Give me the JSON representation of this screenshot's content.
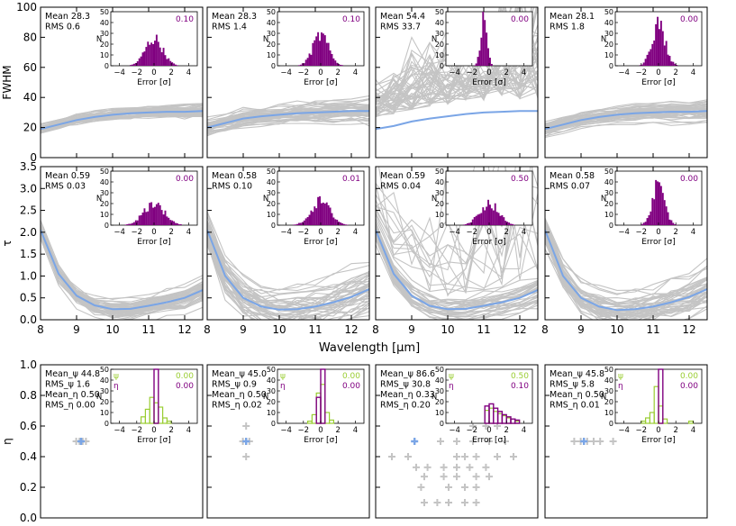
{
  "figure": {
    "xlabel": "Wavelength [μm]",
    "colors": {
      "mean": "#7aa5e6",
      "realization": "#c4c4c4",
      "hist": "#800080",
      "psi": "#9acd32",
      "eta": "#800080",
      "axes": "#000000"
    }
  },
  "chart_data": [
    {
      "type": "line",
      "row": 0,
      "col": 0,
      "ylabel": "FWHM",
      "ylim": [
        0,
        100
      ],
      "xlim": [
        8,
        12.5
      ],
      "x": [
        8,
        8.5,
        9,
        9.5,
        10,
        10.5,
        11,
        11.5,
        12,
        12.5
      ],
      "mean_values": [
        19,
        22,
        25,
        27,
        28.5,
        29.5,
        30,
        30.5,
        30.5,
        31
      ],
      "spread": 6,
      "outliers": 0,
      "stats": [
        "Mean 28.3",
        "RMS 0.6"
      ],
      "inset": {
        "type": "bar",
        "title_value": "0.10",
        "xlabel": "Error [σ]",
        "ylabel": "N",
        "xlim": [
          -5,
          5
        ],
        "ylim": [
          0,
          50
        ],
        "center": 0,
        "width": 1.0,
        "peak": 25
      }
    },
    {
      "type": "line",
      "row": 0,
      "col": 1,
      "ylabel": "",
      "ylim": [
        0,
        100
      ],
      "xlim": [
        8,
        12.5
      ],
      "x": [
        8,
        8.5,
        9,
        9.5,
        10,
        10.5,
        11,
        11.5,
        12,
        12.5
      ],
      "mean_values": [
        20,
        23,
        26,
        27.5,
        28.5,
        29.5,
        30,
        30.5,
        31,
        31
      ],
      "spread": 9,
      "outliers": 0,
      "stats": [
        "Mean 28.3",
        "RMS 1.4"
      ],
      "inset": {
        "type": "bar",
        "title_value": "0.10",
        "xlabel": "Error [σ]",
        "ylabel": "N",
        "xlim": [
          -5,
          5
        ],
        "ylim": [
          0,
          50
        ],
        "center": 0,
        "width": 0.9,
        "peak": 28
      }
    },
    {
      "type": "line",
      "row": 0,
      "col": 2,
      "ylabel": "",
      "ylim": [
        0,
        100
      ],
      "xlim": [
        8,
        12.5
      ],
      "x": [
        8,
        8.5,
        9,
        9.5,
        10,
        10.5,
        11,
        11.5,
        12,
        12.5
      ],
      "mean_values": [
        19,
        21,
        24,
        26,
        27.5,
        29,
        30,
        30.5,
        31,
        31
      ],
      "spread": 10,
      "outliers": 45,
      "stats": [
        "Mean 54.4",
        "RMS 33.7"
      ],
      "inset": {
        "type": "bar",
        "title_value": "0.00",
        "xlabel": "Error [σ]",
        "ylabel": "N",
        "xlim": [
          -5,
          5
        ],
        "ylim": [
          0,
          50
        ],
        "center": -0.6,
        "width": 0.35,
        "peak": 50
      }
    },
    {
      "type": "line",
      "row": 0,
      "col": 3,
      "ylabel": "",
      "ylim": [
        0,
        100
      ],
      "xlim": [
        8,
        12.5
      ],
      "x": [
        8,
        8.5,
        9,
        9.5,
        10,
        10.5,
        11,
        11.5,
        12,
        12.5
      ],
      "mean_values": [
        19,
        22,
        25,
        27,
        28.5,
        29.5,
        30,
        30.5,
        30.5,
        31
      ],
      "spread": 7,
      "outliers": 0,
      "stats": [
        "Mean 28.1",
        "RMS 1.8"
      ],
      "inset": {
        "type": "bar",
        "title_value": "0.00",
        "xlabel": "Error [σ]",
        "ylabel": "N",
        "xlim": [
          -5,
          5
        ],
        "ylim": [
          0,
          50
        ],
        "center": 0,
        "width": 0.75,
        "peak": 38
      }
    },
    {
      "type": "line",
      "row": 1,
      "col": 0,
      "ylabel": "τ",
      "ylim": [
        0,
        3.5
      ],
      "xlim": [
        8,
        12.5
      ],
      "x": [
        8,
        8.5,
        9,
        9.5,
        10,
        10.5,
        11,
        11.5,
        12,
        12.5
      ],
      "mean_values": [
        2.05,
        1.05,
        0.55,
        0.33,
        0.24,
        0.25,
        0.32,
        0.4,
        0.5,
        0.68
      ],
      "spread": 0.3,
      "outliers": 0,
      "stats": [
        "Mean 0.59",
        "RMS 0.03"
      ],
      "inset": {
        "type": "bar",
        "title_value": "0.00",
        "xlabel": "Error [σ]",
        "ylabel": "N",
        "xlim": [
          -5,
          5
        ],
        "ylim": [
          0,
          50
        ],
        "center": 0,
        "width": 1.2,
        "peak": 20
      }
    },
    {
      "type": "line",
      "row": 1,
      "col": 1,
      "ylabel": "",
      "ylim": [
        0,
        3.5
      ],
      "xlim": [
        8,
        12.5
      ],
      "x": [
        8,
        8.5,
        9,
        9.5,
        10,
        10.5,
        11,
        11.5,
        12,
        12.5
      ],
      "mean_values": [
        2.05,
        1.0,
        0.5,
        0.3,
        0.23,
        0.24,
        0.3,
        0.4,
        0.52,
        0.7
      ],
      "spread": 0.7,
      "outliers": 0,
      "stats": [
        "Mean 0.58",
        "RMS 0.10"
      ],
      "inset": {
        "type": "bar",
        "title_value": "0.01",
        "xlabel": "Error [σ]",
        "ylabel": "N",
        "xlim": [
          -5,
          5
        ],
        "ylim": [
          0,
          50
        ],
        "center": 0,
        "width": 1.1,
        "peak": 22
      }
    },
    {
      "type": "line",
      "row": 1,
      "col": 2,
      "ylabel": "",
      "ylim": [
        0,
        3.5
      ],
      "xlim": [
        8,
        12.5
      ],
      "x": [
        8,
        8.5,
        9,
        9.5,
        10,
        10.5,
        11,
        11.5,
        12,
        12.5
      ],
      "mean_values": [
        2.05,
        1.05,
        0.55,
        0.32,
        0.24,
        0.25,
        0.32,
        0.4,
        0.5,
        0.68
      ],
      "spread": 0.45,
      "outliers": 12,
      "stats": [
        "Mean 0.59",
        "RMS 0.04"
      ],
      "inset": {
        "type": "bar",
        "title_value": "0.50",
        "xlabel": "Error [σ]",
        "ylabel": "N",
        "xlim": [
          -5,
          5
        ],
        "ylim": [
          0,
          50
        ],
        "center": 0,
        "width": 1.1,
        "peak": 20
      }
    },
    {
      "type": "line",
      "row": 1,
      "col": 3,
      "ylabel": "",
      "ylim": [
        0,
        3.5
      ],
      "xlim": [
        8,
        12.5
      ],
      "x": [
        8,
        8.5,
        9,
        9.5,
        10,
        10.5,
        11,
        11.5,
        12,
        12.5
      ],
      "mean_values": [
        2.05,
        1.0,
        0.5,
        0.3,
        0.22,
        0.24,
        0.3,
        0.4,
        0.52,
        0.7
      ],
      "spread": 0.55,
      "outliers": 0,
      "stats": [
        "Mean 0.58",
        "RMS 0.07"
      ],
      "inset": {
        "type": "bar",
        "title_value": "0.00",
        "xlabel": "Error [σ]",
        "ylabel": "N",
        "xlim": [
          -5,
          5
        ],
        "ylim": [
          0,
          50
        ],
        "center": 0,
        "width": 0.7,
        "peak": 38
      }
    },
    {
      "type": "scatter",
      "row": 2,
      "col": 0,
      "ylabel": "η",
      "ylim": [
        0,
        1
      ],
      "xlim": [
        0,
        1
      ],
      "points": [
        [
          0.22,
          0.5
        ],
        [
          0.24,
          0.5
        ],
        [
          0.26,
          0.5
        ],
        [
          0.28,
          0.5
        ]
      ],
      "mean_point": [
        0.25,
        0.5
      ],
      "stats": [
        "Mean_ψ 44.8",
        "RMS_ψ 1.6",
        "Mean_η 0.50",
        "RMS_η 0.00"
      ],
      "inset": {
        "type": "bar",
        "psi_label": "ψ",
        "eta_label": "η",
        "psi_value": "0.00",
        "eta_value": "0.00",
        "xlabel": "Error [σ]",
        "ylabel": "N",
        "xlim": [
          -5,
          5
        ],
        "ylim": [
          0,
          50
        ],
        "psi_bins": [
          [
            -1.5,
            6
          ],
          [
            -1.0,
            13
          ],
          [
            -0.5,
            24
          ],
          [
            0.0,
            19
          ],
          [
            0.5,
            15
          ],
          [
            1.0,
            5
          ],
          [
            1.5,
            2
          ]
        ],
        "eta_bins": [
          [
            0.0,
            50
          ]
        ]
      }
    },
    {
      "type": "scatter",
      "row": 2,
      "col": 1,
      "ylabel": "",
      "ylim": [
        0,
        1
      ],
      "xlim": [
        0,
        1
      ],
      "points": [
        [
          0.24,
          0.6
        ],
        [
          0.24,
          0.5
        ],
        [
          0.22,
          0.5
        ],
        [
          0.26,
          0.5
        ],
        [
          0.24,
          0.4
        ]
      ],
      "mean_point": [
        0.24,
        0.5
      ],
      "stats": [
        "Mean_ψ 45.0",
        "RMS_ψ 0.9",
        "Mean_η 0.50",
        "RMS_η 0.02"
      ],
      "inset": {
        "type": "bar",
        "psi_label": "ψ",
        "eta_label": "η",
        "psi_value": "0.00",
        "eta_value": "0.00",
        "xlabel": "Error [σ]",
        "ylabel": "N",
        "xlim": [
          -5,
          5
        ],
        "ylim": [
          0,
          50
        ],
        "psi_bins": [
          [
            -1.5,
            2
          ],
          [
            -1.0,
            8
          ],
          [
            -0.5,
            28
          ],
          [
            0.0,
            36
          ],
          [
            0.5,
            10
          ],
          [
            1.0,
            3
          ]
        ],
        "eta_bins": [
          [
            -0.5,
            24
          ],
          [
            0.0,
            50
          ]
        ]
      }
    },
    {
      "type": "scatter",
      "row": 2,
      "col": 2,
      "ylabel": "",
      "ylim": [
        0,
        1
      ],
      "xlim": [
        0,
        1
      ],
      "points": [
        [
          0.6,
          0.7
        ],
        [
          0.68,
          0.7
        ],
        [
          0.64,
          0.65
        ],
        [
          0.6,
          0.6
        ],
        [
          0.68,
          0.6
        ],
        [
          0.75,
          0.6
        ],
        [
          0.4,
          0.5
        ],
        [
          0.5,
          0.5
        ],
        [
          0.6,
          0.5
        ],
        [
          0.7,
          0.5
        ],
        [
          0.8,
          0.5
        ],
        [
          0.1,
          0.4
        ],
        [
          0.2,
          0.4
        ],
        [
          0.5,
          0.4
        ],
        [
          0.55,
          0.4
        ],
        [
          0.62,
          0.4
        ],
        [
          0.75,
          0.4
        ],
        [
          0.85,
          0.4
        ],
        [
          0.25,
          0.33
        ],
        [
          0.32,
          0.33
        ],
        [
          0.42,
          0.33
        ],
        [
          0.5,
          0.33
        ],
        [
          0.58,
          0.33
        ],
        [
          0.68,
          0.33
        ],
        [
          0.3,
          0.27
        ],
        [
          0.42,
          0.27
        ],
        [
          0.5,
          0.27
        ],
        [
          0.62,
          0.27
        ],
        [
          0.7,
          0.27
        ],
        [
          0.28,
          0.2
        ],
        [
          0.45,
          0.2
        ],
        [
          0.55,
          0.2
        ],
        [
          0.62,
          0.2
        ],
        [
          0.3,
          0.1
        ],
        [
          0.38,
          0.1
        ],
        [
          0.45,
          0.1
        ],
        [
          0.55,
          0.1
        ],
        [
          0.62,
          0.1
        ]
      ],
      "mean_point": [
        0.24,
        0.5
      ],
      "stats": [
        "Mean_ψ 86.6",
        "RMS_ψ 30.8",
        "Mean_η 0.33",
        "RMS_η 0.20"
      ],
      "inset": {
        "type": "bar",
        "psi_label": "ψ",
        "eta_label": "η",
        "psi_value": "0.50",
        "eta_value": "0.10",
        "xlabel": "Error [σ]",
        "ylabel": "N",
        "xlim": [
          -5,
          5
        ],
        "ylim": [
          0,
          50
        ],
        "psi_bins": [
          [
            -0.5,
            12
          ],
          [
            0.0,
            14
          ],
          [
            0.5,
            11
          ],
          [
            1.0,
            9
          ],
          [
            1.5,
            7
          ],
          [
            2.0,
            5
          ],
          [
            2.5,
            4
          ],
          [
            3.0,
            2
          ]
        ],
        "eta_bins": [
          [
            -0.5,
            16
          ],
          [
            0.0,
            18
          ],
          [
            0.5,
            14
          ],
          [
            1.0,
            11
          ],
          [
            1.5,
            8
          ],
          [
            2.0,
            6
          ],
          [
            2.5,
            4
          ],
          [
            3.0,
            3
          ]
        ]
      }
    },
    {
      "type": "scatter",
      "row": 2,
      "col": 3,
      "ylabel": "",
      "ylim": [
        0,
        1
      ],
      "xlim": [
        0,
        1
      ],
      "points": [
        [
          0.18,
          0.5
        ],
        [
          0.22,
          0.5
        ],
        [
          0.26,
          0.5
        ],
        [
          0.3,
          0.5
        ],
        [
          0.34,
          0.5
        ],
        [
          0.42,
          0.5
        ]
      ],
      "mean_point": [
        0.24,
        0.5
      ],
      "stats": [
        "Mean_ψ 45.8",
        "RMS_ψ 5.8",
        "Mean_η 0.50",
        "RMS_η 0.01"
      ],
      "inset": {
        "type": "bar",
        "psi_label": "ψ",
        "eta_label": "η",
        "psi_value": "0.00",
        "eta_value": "0.00",
        "xlabel": "Error [σ]",
        "ylabel": "N",
        "xlim": [
          -5,
          5
        ],
        "ylim": [
          0,
          50
        ],
        "psi_bins": [
          [
            -2.0,
            2
          ],
          [
            -1.5,
            5
          ],
          [
            -1.0,
            10
          ],
          [
            -0.5,
            34
          ],
          [
            0.0,
            16
          ],
          [
            0.5,
            4
          ],
          [
            3.5,
            2
          ]
        ],
        "eta_bins": [
          [
            0.0,
            50
          ]
        ]
      }
    }
  ]
}
